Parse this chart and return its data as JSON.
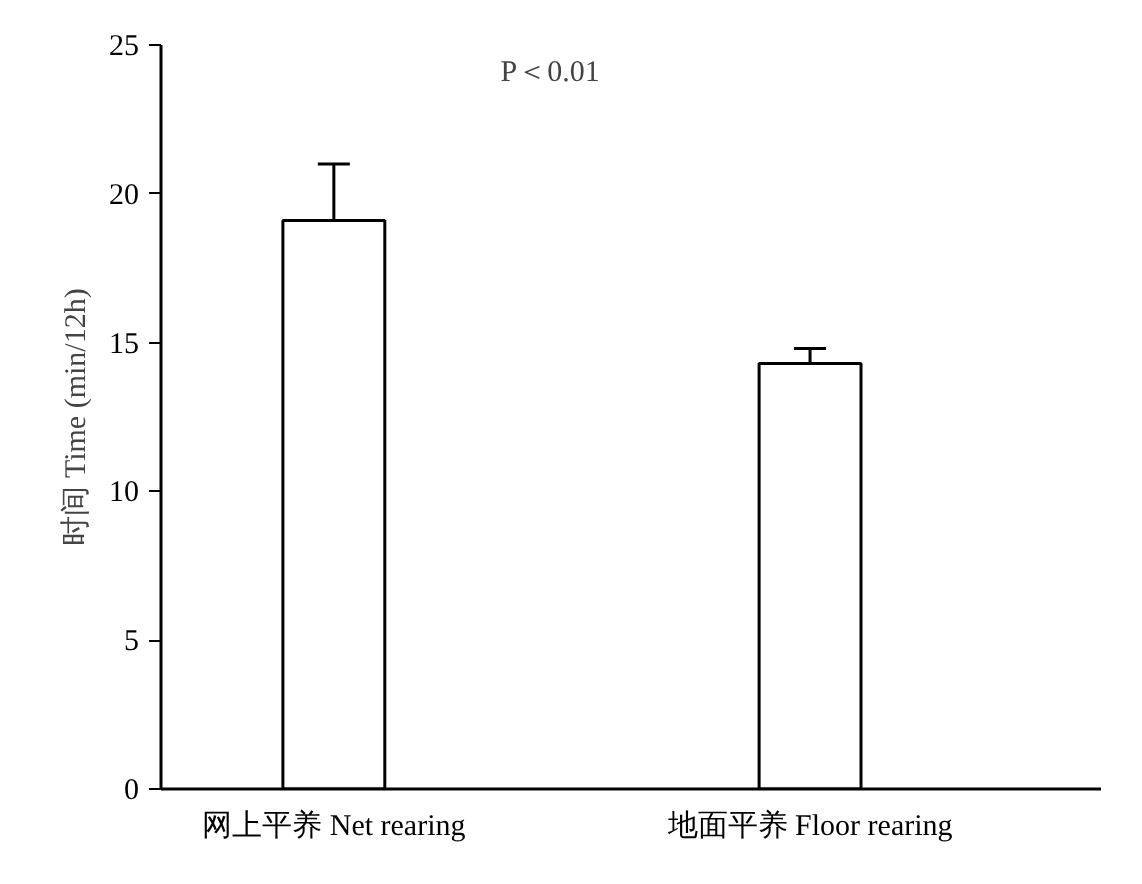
{
  "chart_data": {
    "type": "bar",
    "ylabel": "时间 Time (min/12h)",
    "categories": [
      "网上平养 Net rearing",
      "地面平养 Floor rearing"
    ],
    "values": [
      19.1,
      14.3
    ],
    "errors": [
      1.9,
      0.5
    ],
    "color": "#ffffff",
    "ylim": [
      0,
      25
    ],
    "yticks": [
      0,
      5,
      10,
      15,
      20,
      25
    ],
    "grid": false,
    "annotations": [
      "P＜0.01"
    ]
  }
}
